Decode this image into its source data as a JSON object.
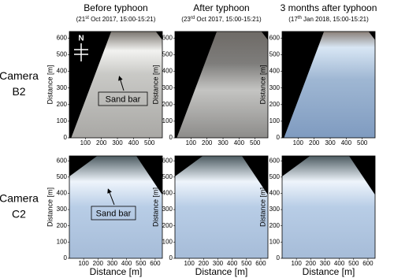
{
  "columns": [
    {
      "title": "Before typhoon",
      "subtitle": {
        "pre": "(21",
        "sup": "st",
        "post": " Oct 2017, 15:00-15:21)"
      }
    },
    {
      "title": "After typhoon",
      "subtitle": {
        "pre": "(23",
        "sup": "rd",
        "post": " Oct 2017, 15:00-15:21)"
      }
    },
    {
      "title": "3 months after typhoon",
      "subtitle": {
        "pre": "(17",
        "sup": "th",
        "post": " Jan 2018, 15:00-15:21)"
      }
    }
  ],
  "rows": [
    {
      "label": [
        "Camera",
        "B2"
      ],
      "ylabel": "Distance [m]",
      "xlim": [
        0,
        580
      ],
      "xticks": [
        100,
        200,
        300,
        400,
        500
      ],
      "ylim": [
        0,
        640
      ],
      "yticks": [
        0,
        100,
        200,
        300,
        400,
        500,
        600
      ]
    },
    {
      "label": [
        "Camera",
        "C2"
      ],
      "ylabel": "Distance [m]",
      "xlabel": "Distance [m]",
      "xlim": [
        0,
        650
      ],
      "xticks": [
        100,
        200,
        300,
        400,
        500,
        600
      ],
      "ylim": [
        0,
        630
      ],
      "yticks": [
        0,
        100,
        200,
        300,
        400,
        500,
        600
      ]
    }
  ],
  "annotations": [
    "Sand bar",
    "Sand bar"
  ],
  "compass": "N"
}
